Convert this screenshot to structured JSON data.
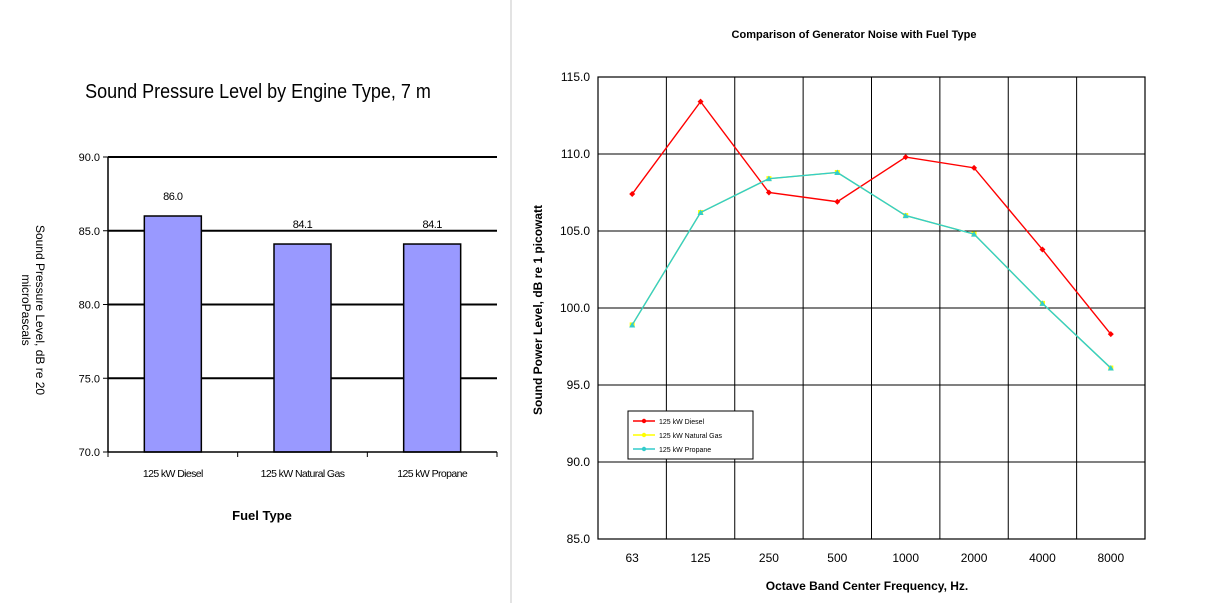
{
  "chart_data": [
    {
      "type": "bar",
      "title": "Sound Pressure Level by Engine Type, 7 m",
      "xlabel": "Fuel Type",
      "ylabel_line1": "Sound Pressure Level, dB re 20",
      "ylabel_line2": "microPascals",
      "categories": [
        "125 kW Diesel",
        "125 kW Natural Gas",
        "125 kW Propane"
      ],
      "values": [
        86.0,
        84.1,
        84.1
      ],
      "data_labels": [
        "86.0",
        "84.1",
        "84.1"
      ],
      "ylim": [
        70,
        90
      ],
      "yticks": [
        "70.0",
        "75.0",
        "80.0",
        "85.0",
        "90.0"
      ],
      "bar_color": "#9999ff",
      "grid": true
    },
    {
      "type": "line",
      "title": "Comparison of Generator Noise with Fuel Type",
      "xlabel": "Octave Band Center Frequency, Hz.",
      "ylabel": "Sound Power Level, dB re 1 picowatt",
      "categories": [
        "63",
        "125",
        "250",
        "500",
        "1000",
        "2000",
        "4000",
        "8000"
      ],
      "ylim": [
        85,
        115
      ],
      "yticks": [
        "85.0",
        "90.0",
        "95.0",
        "100.0",
        "105.0",
        "110.0",
        "115.0"
      ],
      "grid": true,
      "legend_position": "bottom-left",
      "series": [
        {
          "name": "125 kW Diesel",
          "color": "#ff0000",
          "values": [
            107.4,
            113.4,
            107.5,
            106.9,
            109.8,
            109.1,
            103.8,
            98.3
          ]
        },
        {
          "name": "125 kW Natural Gas",
          "color": "#ffff00",
          "values": [
            98.9,
            106.2,
            108.4,
            108.8,
            106.0,
            104.8,
            100.3,
            96.1
          ]
        },
        {
          "name": "125 kW Propane",
          "color": "#33cccc",
          "values": [
            98.9,
            106.2,
            108.4,
            108.8,
            106.0,
            104.8,
            100.3,
            96.1
          ]
        }
      ]
    }
  ]
}
